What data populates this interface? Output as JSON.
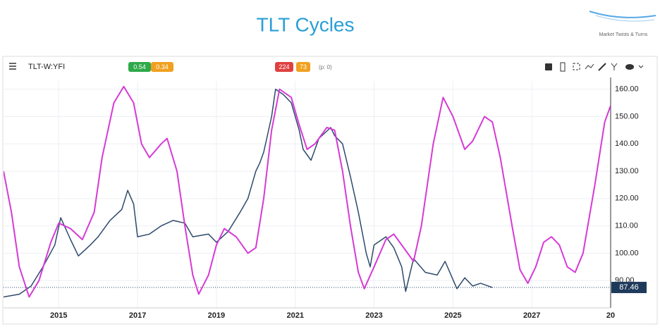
{
  "header": {
    "logo_text": "Market Twists & Turns"
  },
  "toolbar": {
    "symbol": "TLT-W:YFI",
    "badges": [
      {
        "text": "0.54",
        "color": "#2eaa4a"
      },
      {
        "text": "0.34",
        "color": "#f0a020"
      },
      {
        "text": "224",
        "color": "#e04040"
      },
      {
        "text": "73",
        "color": "#f0a020"
      }
    ],
    "note": "(p: 0)"
  },
  "chart_data": {
    "type": "line",
    "title": "TLT Cycles",
    "xlim": [
      2013.6,
      2029
    ],
    "ylim": [
      80,
      163
    ],
    "xticks": [
      2015,
      2017,
      2019,
      2021,
      2023,
      2025,
      2027,
      {
        "value": 2029,
        "label": "20"
      }
    ],
    "yticks": [
      {
        "value": 90,
        "label": "90.00"
      },
      {
        "value": 100,
        "label": "100.00"
      },
      {
        "value": 110,
        "label": "110.00"
      },
      {
        "value": 120,
        "label": "120.00"
      },
      {
        "value": 130,
        "label": "130.00"
      },
      {
        "value": 140,
        "label": "140.00"
      },
      {
        "value": 150,
        "label": "150.00"
      },
      {
        "value": 160,
        "label": "160.00"
      }
    ],
    "grid": true,
    "last_price": {
      "value": 87.46,
      "label": "87.46"
    },
    "series": [
      {
        "color": "#2e4a6b",
        "x": [
          2013.6,
          2014.0,
          2014.3,
          2014.6,
          2014.9,
          2015.05,
          2015.3,
          2015.5,
          2015.8,
          2016.0,
          2016.3,
          2016.6,
          2016.75,
          2016.9,
          2017.0,
          2017.3,
          2017.6,
          2017.9,
          2018.2,
          2018.4,
          2018.8,
          2019.0,
          2019.3,
          2019.6,
          2019.8,
          2020.0,
          2020.1,
          2020.2,
          2020.4,
          2020.5,
          2020.7,
          2020.9,
          2021.1,
          2021.2,
          2021.4,
          2021.6,
          2021.9,
          2022.0,
          2022.2,
          2022.4,
          2022.6,
          2022.8,
          2022.9,
          2023.0,
          2023.3,
          2023.5,
          2023.7,
          2023.8,
          2024.0,
          2024.3,
          2024.6,
          2024.8,
          2024.95,
          2025.1,
          2025.3,
          2025.5,
          2025.7,
          2026.0
        ],
        "values": [
          84,
          85,
          88,
          95,
          103,
          113,
          105,
          99,
          103,
          106,
          112,
          116,
          123,
          118,
          106,
          107,
          110,
          112,
          111,
          106,
          107,
          104,
          108,
          115,
          120,
          130,
          133,
          137,
          150,
          160,
          158,
          155,
          145,
          138,
          134,
          142,
          146,
          143,
          140,
          128,
          115,
          100,
          95,
          103,
          106,
          102,
          95,
          86,
          98,
          93,
          92,
          97,
          92,
          87,
          91,
          88,
          89,
          87.46
        ]
      },
      {
        "color": "#d63ad6",
        "x": [
          2013.6,
          2013.8,
          2014.0,
          2014.25,
          2014.5,
          2014.8,
          2015.0,
          2015.3,
          2015.6,
          2015.9,
          2016.1,
          2016.4,
          2016.65,
          2016.9,
          2017.1,
          2017.3,
          2017.6,
          2017.75,
          2018.0,
          2018.2,
          2018.4,
          2018.55,
          2018.8,
          2019.0,
          2019.2,
          2019.5,
          2019.8,
          2020.0,
          2020.2,
          2020.4,
          2020.6,
          2020.9,
          2021.1,
          2021.3,
          2021.5,
          2021.8,
          2022.0,
          2022.2,
          2022.4,
          2022.6,
          2022.75,
          2023.0,
          2023.3,
          2023.5,
          2023.8,
          2024.0,
          2024.2,
          2024.5,
          2024.75,
          2025.0,
          2025.3,
          2025.5,
          2025.8,
          2026.0,
          2026.2,
          2026.5,
          2026.7,
          2026.9,
          2027.1,
          2027.3,
          2027.5,
          2027.7,
          2027.9,
          2028.1,
          2028.3,
          2028.6,
          2028.85,
          2029.0
        ],
        "values": [
          130,
          115,
          95,
          84,
          90,
          104,
          111,
          109,
          105,
          115,
          135,
          155,
          161,
          155,
          140,
          135,
          140,
          142,
          130,
          110,
          92,
          85,
          92,
          103,
          109,
          106,
          100,
          102,
          120,
          145,
          160,
          157,
          147,
          138,
          140,
          146,
          145,
          130,
          110,
          93,
          87,
          95,
          105,
          107,
          101,
          97,
          110,
          140,
          157,
          150,
          138,
          141,
          150,
          148,
          135,
          110,
          94,
          89,
          95,
          104,
          106,
          103,
          95,
          93,
          100,
          125,
          148,
          154
        ]
      }
    ]
  }
}
